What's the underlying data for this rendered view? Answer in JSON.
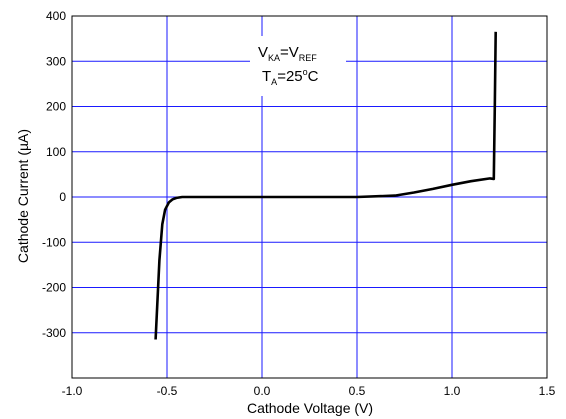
{
  "chart_data": {
    "type": "line",
    "title": "",
    "xlabel": "Cathode Voltage (V)",
    "ylabel": "Cathode Current (µA)",
    "xlim": [
      -1.0,
      1.5
    ],
    "ylim": [
      -400,
      400
    ],
    "x_ticks": [
      -1.0,
      -0.5,
      0.0,
      0.5,
      1.0,
      1.5
    ],
    "x_tick_labels": [
      "-1.0",
      "-0.5",
      "0.0",
      "0.5",
      "1.0",
      "1.5"
    ],
    "y_ticks": [
      -300,
      -200,
      -100,
      0,
      100,
      200,
      300,
      400
    ],
    "y_tick_labels": [
      "-300",
      "-200",
      "-100",
      "0",
      "100",
      "200",
      "300",
      "400"
    ],
    "grid": true,
    "grid_color": "#1a1aff",
    "line_color": "#000000",
    "series": [
      {
        "x": [
          -0.56,
          -0.54,
          -0.525,
          -0.51,
          -0.49,
          -0.47,
          -0.45,
          -0.42,
          -0.38,
          0.0,
          0.5,
          0.7,
          0.8,
          0.9,
          1.0,
          1.1,
          1.2,
          1.22,
          1.225,
          1.23
        ],
        "y": [
          -315,
          -140,
          -60,
          -28,
          -12,
          -5,
          -2,
          0,
          0,
          0,
          0,
          3,
          10,
          18,
          27,
          35,
          41,
          40,
          200,
          365
        ]
      }
    ],
    "annotations": {
      "line1": {
        "v": "V",
        "ka": "KA",
        "eq": "=V",
        "ref": "REF"
      },
      "line2": {
        "t": "T",
        "a": "A",
        "val": "=25",
        "deg": "o",
        "unit": "C"
      }
    }
  }
}
